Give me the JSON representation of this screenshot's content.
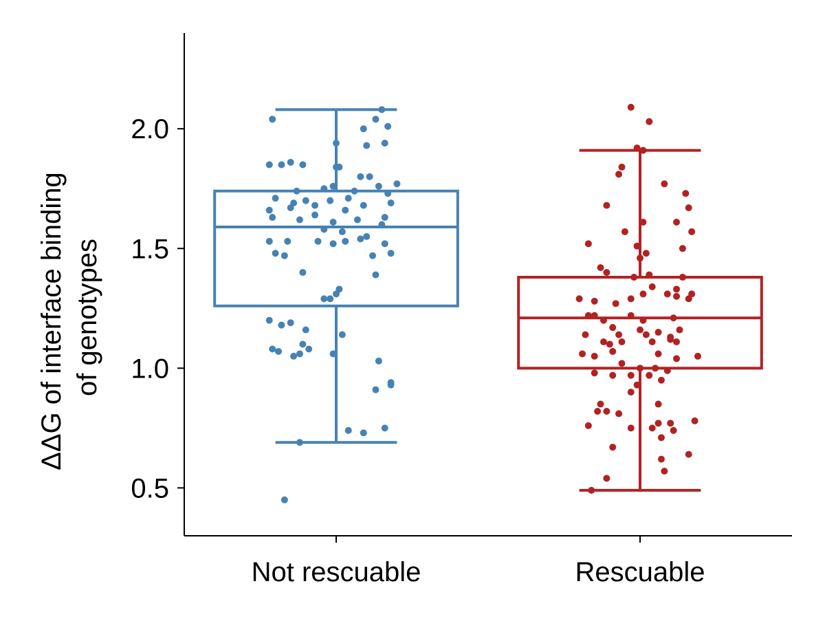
{
  "chart_data": {
    "type": "box",
    "ylabel_lines": [
      "ΔΔG of interface binding",
      "of genotypes"
    ],
    "categories": [
      "Not rescuable",
      "Rescuable"
    ],
    "ylim": [
      0.3,
      2.4
    ],
    "yticks": [
      0.5,
      1.0,
      1.5,
      2.0
    ],
    "ytick_labels": [
      "0.5",
      "1.0",
      "1.5",
      "2.0"
    ],
    "grid": false,
    "series": [
      {
        "color": "#4682b4",
        "box": {
          "whisker_low": 0.69,
          "q1": 1.26,
          "median": 1.59,
          "q3": 1.74,
          "whisker_high": 2.08
        },
        "points": [
          [
            -0.21,
            2.04
          ],
          [
            0.15,
            2.08
          ],
          [
            0.13,
            2.04
          ],
          [
            0.17,
            2.01
          ],
          [
            0.09,
            2.0
          ],
          [
            0.16,
            1.94
          ],
          [
            0.0,
            1.94
          ],
          [
            0.1,
            1.93
          ],
          [
            -0.22,
            1.85
          ],
          [
            -0.18,
            1.85
          ],
          [
            -0.15,
            1.86
          ],
          [
            -0.11,
            1.85
          ],
          [
            0.0,
            1.84
          ],
          [
            0.01,
            1.84
          ],
          [
            0.08,
            1.8
          ],
          [
            0.11,
            1.8
          ],
          [
            0.2,
            1.77
          ],
          [
            -0.13,
            1.74
          ],
          [
            -0.04,
            1.75
          ],
          [
            -0.01,
            1.76
          ],
          [
            0.06,
            1.74
          ],
          [
            0.14,
            1.76
          ],
          [
            0.17,
            1.73
          ],
          [
            -0.2,
            1.71
          ],
          [
            -0.14,
            1.69
          ],
          [
            -0.1,
            1.7
          ],
          [
            -0.07,
            1.68
          ],
          [
            -0.02,
            1.7
          ],
          [
            0.04,
            1.71
          ],
          [
            0.09,
            1.68
          ],
          [
            0.18,
            1.69
          ],
          [
            -0.22,
            1.66
          ],
          [
            -0.15,
            1.67
          ],
          [
            -0.07,
            1.64
          ],
          [
            0.03,
            1.66
          ],
          [
            -0.21,
            1.63
          ],
          [
            -0.12,
            1.62
          ],
          [
            -0.01,
            1.61
          ],
          [
            0.07,
            1.62
          ],
          [
            0.16,
            1.63
          ],
          [
            0.15,
            1.6
          ],
          [
            -0.04,
            1.58
          ],
          [
            0.02,
            1.57
          ],
          [
            0.08,
            1.54
          ],
          [
            -0.22,
            1.53
          ],
          [
            -0.16,
            1.53
          ],
          [
            -0.06,
            1.53
          ],
          [
            -0.01,
            1.52
          ],
          [
            0.03,
            1.53
          ],
          [
            0.1,
            1.55
          ],
          [
            0.16,
            1.52
          ],
          [
            -0.2,
            1.48
          ],
          [
            -0.17,
            1.47
          ],
          [
            0.18,
            1.48
          ],
          [
            0.12,
            1.47
          ],
          [
            -0.11,
            1.4
          ],
          [
            0.13,
            1.39
          ],
          [
            0.01,
            1.33
          ],
          [
            0.0,
            1.31
          ],
          [
            -0.04,
            1.29
          ],
          [
            -0.02,
            1.29
          ],
          [
            -0.22,
            1.2
          ],
          [
            -0.18,
            1.18
          ],
          [
            -0.15,
            1.19
          ],
          [
            -0.1,
            1.16
          ],
          [
            0.02,
            1.14
          ],
          [
            -0.11,
            1.1
          ],
          [
            -0.09,
            1.08
          ],
          [
            -0.21,
            1.08
          ],
          [
            -0.19,
            1.07
          ],
          [
            -0.14,
            1.05
          ],
          [
            -0.12,
            1.06
          ],
          [
            -0.01,
            1.06
          ],
          [
            0.14,
            1.03
          ],
          [
            0.18,
            0.94
          ],
          [
            0.18,
            0.93
          ],
          [
            0.13,
            0.91
          ],
          [
            0.16,
            0.75
          ],
          [
            0.04,
            0.74
          ],
          [
            0.09,
            0.73
          ],
          [
            -0.12,
            0.69
          ],
          [
            -0.17,
            0.45
          ]
        ]
      },
      {
        "color": "#b22222",
        "box": {
          "whisker_low": 0.49,
          "q1": 1.0,
          "median": 1.21,
          "q3": 1.38,
          "whisker_high": 1.91
        },
        "points": [
          [
            -0.03,
            2.09
          ],
          [
            0.03,
            2.03
          ],
          [
            -0.01,
            1.92
          ],
          [
            0.01,
            1.91
          ],
          [
            -0.06,
            1.84
          ],
          [
            -0.07,
            1.81
          ],
          [
            0.08,
            1.77
          ],
          [
            0.15,
            1.73
          ],
          [
            -0.11,
            1.68
          ],
          [
            0.16,
            1.67
          ],
          [
            0.12,
            1.61
          ],
          [
            0.01,
            1.61
          ],
          [
            -0.05,
            1.57
          ],
          [
            0.17,
            1.57
          ],
          [
            -0.17,
            1.52
          ],
          [
            -0.01,
            1.51
          ],
          [
            0.14,
            1.5
          ],
          [
            0.02,
            1.48
          ],
          [
            0.0,
            1.46
          ],
          [
            -0.13,
            1.42
          ],
          [
            -0.11,
            1.4
          ],
          [
            0.03,
            1.39
          ],
          [
            -0.02,
            1.38
          ],
          [
            0.14,
            1.38
          ],
          [
            0.04,
            1.34
          ],
          [
            0.12,
            1.33
          ],
          [
            0.17,
            1.31
          ],
          [
            0.01,
            1.31
          ],
          [
            0.09,
            1.31
          ],
          [
            0.12,
            1.3
          ],
          [
            -0.2,
            1.29
          ],
          [
            -0.15,
            1.28
          ],
          [
            -0.03,
            1.29
          ],
          [
            0.16,
            1.29
          ],
          [
            -0.08,
            1.27
          ],
          [
            -0.17,
            1.22
          ],
          [
            -0.15,
            1.22
          ],
          [
            -0.12,
            1.2
          ],
          [
            -0.03,
            1.22
          ],
          [
            0.01,
            1.2
          ],
          [
            0.11,
            1.21
          ],
          [
            -0.09,
            1.17
          ],
          [
            0.0,
            1.16
          ],
          [
            0.06,
            1.15
          ],
          [
            0.13,
            1.16
          ],
          [
            -0.18,
            1.14
          ],
          [
            -0.07,
            1.14
          ],
          [
            0.02,
            1.14
          ],
          [
            0.1,
            1.13
          ],
          [
            -0.12,
            1.11
          ],
          [
            -0.06,
            1.11
          ],
          [
            0.04,
            1.11
          ],
          [
            0.1,
            1.12
          ],
          [
            0.12,
            1.11
          ],
          [
            -0.1,
            1.1
          ],
          [
            -0.19,
            1.06
          ],
          [
            -0.15,
            1.05
          ],
          [
            -0.09,
            1.07
          ],
          [
            0.06,
            1.06
          ],
          [
            0.12,
            1.04
          ],
          [
            0.19,
            1.05
          ],
          [
            -0.06,
            1.02
          ],
          [
            0.0,
            1.0
          ],
          [
            0.05,
            1.0
          ],
          [
            0.09,
            0.99
          ],
          [
            -0.15,
            0.98
          ],
          [
            -0.09,
            0.97
          ],
          [
            -0.03,
            0.97
          ],
          [
            0.03,
            0.97
          ],
          [
            0.07,
            0.95
          ],
          [
            -0.01,
            0.93
          ],
          [
            -0.03,
            0.9
          ],
          [
            -0.13,
            0.85
          ],
          [
            0.06,
            0.85
          ],
          [
            -0.14,
            0.82
          ],
          [
            -0.11,
            0.82
          ],
          [
            -0.07,
            0.81
          ],
          [
            0.06,
            0.77
          ],
          [
            0.1,
            0.77
          ],
          [
            0.18,
            0.78
          ],
          [
            -0.17,
            0.76
          ],
          [
            -0.03,
            0.75
          ],
          [
            0.04,
            0.75
          ],
          [
            0.11,
            0.74
          ],
          [
            0.07,
            0.71
          ],
          [
            -0.09,
            0.67
          ],
          [
            0.16,
            0.64
          ],
          [
            0.07,
            0.62
          ],
          [
            0.08,
            0.57
          ],
          [
            -0.11,
            0.54
          ],
          [
            -0.16,
            0.49
          ]
        ]
      }
    ]
  }
}
